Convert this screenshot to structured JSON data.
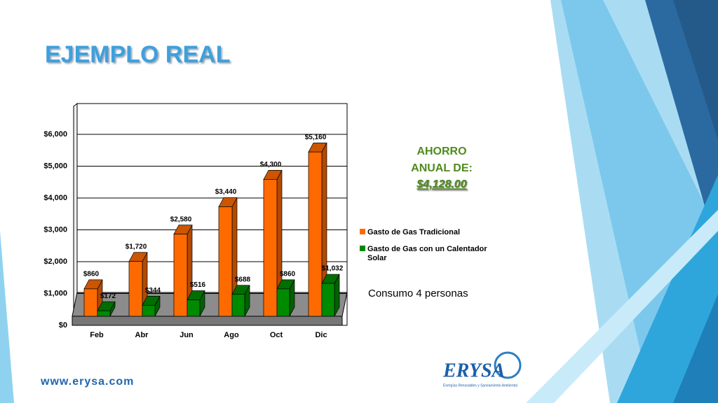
{
  "slide": {
    "title": "EJEMPLO REAL",
    "callout": [
      "AHORRO",
      "ANUAL DE:",
      "$4,128.00"
    ],
    "note": "Consumo 4 personas",
    "website": "www.erysa.com",
    "logo": "ERYSA",
    "logo_tagline": "Energías Renovables y Saneamiento Ambiental"
  },
  "chart_data": {
    "type": "bar3d",
    "categories": [
      "Feb",
      "Abr",
      "Jun",
      "Ago",
      "Oct",
      "Dic"
    ],
    "series": [
      {
        "name": "Gasto de Gas Tradicional",
        "color": "#ff6a00",
        "values": [
          860,
          1720,
          2580,
          3440,
          4300,
          5160
        ],
        "value_labels": [
          "$860",
          "$1,720",
          "$2,580",
          "$3,440",
          "$4,300",
          "$5,160"
        ]
      },
      {
        "name": "Gasto de Gas con un Calentador Solar",
        "color": "#008a00",
        "values": [
          172,
          344,
          516,
          688,
          860,
          1032
        ],
        "value_labels": [
          "$172",
          "$344",
          "$516",
          "$688",
          "$860",
          "$1,032"
        ]
      }
    ],
    "ylim": [
      0,
      7000
    ],
    "yticks": [
      {
        "value": 0,
        "label": "$0"
      },
      {
        "value": 1000,
        "label": "$1,000"
      },
      {
        "value": 2000,
        "label": "$2,000"
      },
      {
        "value": 3000,
        "label": "$3,000"
      },
      {
        "value": 4000,
        "label": "$4,000"
      },
      {
        "value": 5000,
        "label": "$5,000"
      },
      {
        "value": 6000,
        "label": "$6,000"
      }
    ],
    "grid": true,
    "legend": "right"
  }
}
